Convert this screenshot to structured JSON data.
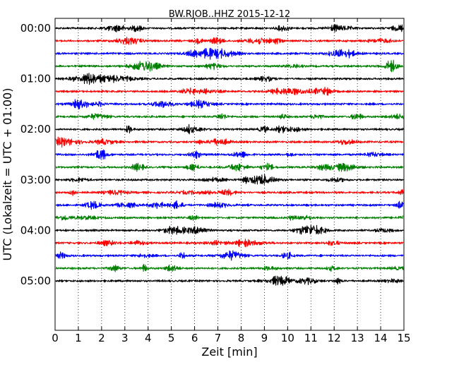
{
  "chart_data": {
    "type": "line",
    "title": "BW.RJOB..HHZ 2015-12-12",
    "xlabel": "Zeit  [min]",
    "ylabel": "UTC (Lokalzeit = UTC + 01:00)",
    "xlim": [
      0,
      15
    ],
    "x_ticks": [
      "0",
      "1",
      "2",
      "3",
      "4",
      "5",
      "6",
      "7",
      "8",
      "9",
      "10",
      "11",
      "12",
      "13",
      "14",
      "15"
    ],
    "y_ticks": [
      "00:00",
      "01:00",
      "02:00",
      "03:00",
      "04:00",
      "05:00"
    ],
    "trace_interval_min": 15,
    "trace_count": 21,
    "trace_colors": [
      "#000000",
      "#ff0000",
      "#0000ff",
      "#008000"
    ],
    "grid": "vertical dotted"
  }
}
